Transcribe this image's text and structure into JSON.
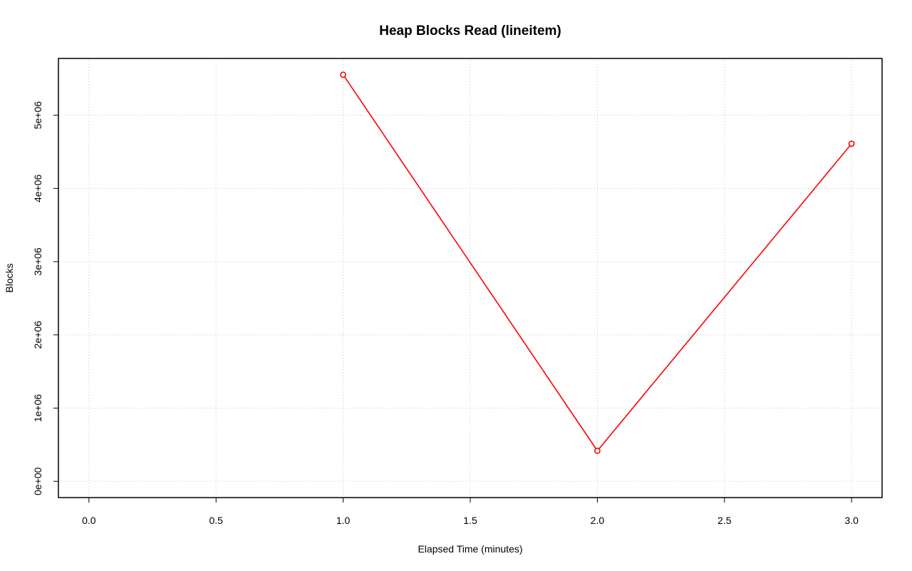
{
  "chart_data": {
    "type": "line",
    "title": "Heap Blocks Read (lineitem)",
    "xlabel": "Elapsed Time (minutes)",
    "ylabel": "Blocks",
    "x": [
      1,
      2,
      3
    ],
    "values": [
      5553000,
      417000,
      4610000
    ],
    "color": "#ff0000",
    "xlim": [
      -0.12,
      3.12
    ],
    "xticks": [
      {
        "value": 0,
        "label": "0.0"
      },
      {
        "value": 0.5,
        "label": "0.5"
      },
      {
        "value": 1,
        "label": "1.0"
      },
      {
        "value": 1.5,
        "label": "1.5"
      },
      {
        "value": 2,
        "label": "2.0"
      },
      {
        "value": 2.5,
        "label": "2.5"
      },
      {
        "value": 3,
        "label": "3.0"
      }
    ],
    "ylim": [
      -222000,
      5775000
    ],
    "yticks": [
      {
        "value": 0,
        "label": "0e+00"
      },
      {
        "value": 1000000,
        "label": "1e+06"
      },
      {
        "value": 2000000,
        "label": "2e+06"
      },
      {
        "value": 3000000,
        "label": "3e+06"
      },
      {
        "value": 4000000,
        "label": "4e+06"
      },
      {
        "value": 5000000,
        "label": "5e+06"
      }
    ],
    "grid": true
  }
}
